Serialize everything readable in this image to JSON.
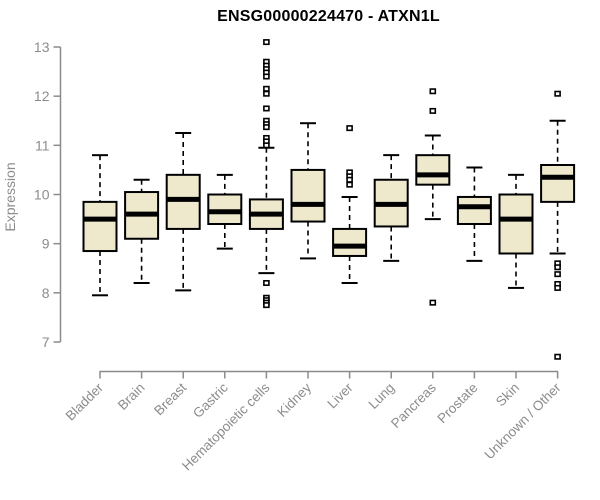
{
  "page": {
    "background": "#ffffff"
  },
  "chart_data": {
    "type": "boxplot",
    "title": "ENSG00000224470 - ATXN1L",
    "ylabel": "Expression",
    "xlabel": "",
    "ylim": [
      7,
      13
    ],
    "yticks": [
      7,
      8,
      9,
      10,
      11,
      12,
      13
    ],
    "grid": false,
    "legend": null,
    "x_label_rotation_deg": 45,
    "categories": [
      "Bladder",
      "Brain",
      "Breast",
      "Gastric",
      "Hematopoietic cells",
      "Kidney",
      "Liver",
      "Lung",
      "Pancreas",
      "Prostate",
      "Skin",
      "Unknown / Other"
    ],
    "series": [
      {
        "name": "Bladder",
        "whisker_low": 7.95,
        "q1": 8.85,
        "median": 9.5,
        "q3": 9.85,
        "whisker_high": 10.8,
        "outliers": []
      },
      {
        "name": "Brain",
        "whisker_low": 8.2,
        "q1": 9.1,
        "median": 9.6,
        "q3": 10.05,
        "whisker_high": 10.3,
        "outliers": []
      },
      {
        "name": "Breast",
        "whisker_low": 8.05,
        "q1": 9.3,
        "median": 9.9,
        "q3": 10.4,
        "whisker_high": 11.25,
        "outliers": []
      },
      {
        "name": "Gastric",
        "whisker_low": 8.9,
        "q1": 9.4,
        "median": 9.65,
        "q3": 10.0,
        "whisker_high": 10.4,
        "outliers": []
      },
      {
        "name": "Hematopoietic cells",
        "whisker_low": 8.4,
        "q1": 9.3,
        "median": 9.6,
        "q3": 9.9,
        "whisker_high": 10.95,
        "outliers": [
          13.1,
          12.7,
          12.62,
          12.55,
          12.48,
          12.4,
          12.15,
          12.05,
          11.75,
          11.5,
          11.43,
          11.37,
          11.15,
          11.08,
          11.0,
          8.2,
          7.9,
          7.85,
          7.8,
          7.75
        ]
      },
      {
        "name": "Kidney",
        "whisker_low": 8.7,
        "q1": 9.45,
        "median": 9.8,
        "q3": 10.5,
        "whisker_high": 11.45,
        "outliers": []
      },
      {
        "name": "Liver",
        "whisker_low": 8.2,
        "q1": 8.75,
        "median": 8.95,
        "q3": 9.3,
        "whisker_high": 9.95,
        "outliers": [
          11.35,
          10.45,
          10.37,
          10.3,
          10.2
        ]
      },
      {
        "name": "Lung",
        "whisker_low": 8.65,
        "q1": 9.35,
        "median": 9.8,
        "q3": 10.3,
        "whisker_high": 10.8,
        "outliers": []
      },
      {
        "name": "Pancreas",
        "whisker_low": 9.5,
        "q1": 10.2,
        "median": 10.4,
        "q3": 10.8,
        "whisker_high": 11.2,
        "outliers": [
          12.1,
          11.7,
          7.8
        ]
      },
      {
        "name": "Prostate",
        "whisker_low": 8.65,
        "q1": 9.4,
        "median": 9.75,
        "q3": 9.95,
        "whisker_high": 10.55,
        "outliers": []
      },
      {
        "name": "Skin",
        "whisker_low": 8.1,
        "q1": 8.8,
        "median": 9.5,
        "q3": 10.0,
        "whisker_high": 10.4,
        "outliers": []
      },
      {
        "name": "Unknown / Other",
        "whisker_low": 8.8,
        "q1": 9.85,
        "median": 10.35,
        "q3": 10.6,
        "whisker_high": 11.5,
        "outliers": [
          12.05,
          8.6,
          8.52,
          8.38,
          8.18,
          8.1,
          6.7
        ]
      }
    ],
    "colors": {
      "box_fill": "#EEE8CD",
      "box_stroke": "#000000",
      "median": "#000000",
      "whisker": "#000000",
      "outlier_stroke": "#000000",
      "outlier_fill": "#FFFFFF",
      "axis": "#8B8B8B",
      "tick_label": "#8C8C8C",
      "title": "#000000",
      "background": "#FFFFFF"
    }
  }
}
